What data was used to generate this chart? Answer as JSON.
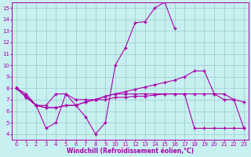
{
  "title": "",
  "xlabel": "Windchill (Refroidissement éolien,°C)",
  "ylabel": "",
  "background_color": "#c8f0f0",
  "grid_color": "#99cccc",
  "line_color": "#aa00aa",
  "x_values": [
    0,
    1,
    2,
    3,
    4,
    5,
    6,
    7,
    8,
    9,
    10,
    11,
    12,
    13,
    14,
    15,
    16,
    17,
    18,
    19,
    20,
    21,
    22,
    23
  ],
  "s1_x": [
    0,
    1,
    2,
    3,
    4,
    5,
    6,
    7,
    8,
    9,
    10,
    11,
    12,
    13,
    14,
    15,
    16
  ],
  "s1_y": [
    8.0,
    7.5,
    6.5,
    4.5,
    5.0,
    7.5,
    6.5,
    5.5,
    4.0,
    5.0,
    10.0,
    11.5,
    13.7,
    13.8,
    15.0,
    15.5,
    13.2
  ],
  "s2_x": [
    0,
    1,
    2,
    3,
    4,
    5,
    6,
    7,
    8,
    9,
    10,
    11,
    12,
    13,
    14,
    15,
    16,
    17,
    18,
    19,
    20,
    21,
    22,
    23
  ],
  "s2_y": [
    8.0,
    7.3,
    6.5,
    6.5,
    7.5,
    7.5,
    7.0,
    7.0,
    7.0,
    7.0,
    7.2,
    7.2,
    7.3,
    7.3,
    7.4,
    7.5,
    7.5,
    7.5,
    7.5,
    7.5,
    7.5,
    7.0,
    7.0,
    6.8
  ],
  "s3_x": [
    0,
    1,
    2,
    3,
    4,
    5,
    6,
    7,
    8,
    9,
    10,
    11,
    12,
    13,
    14,
    15,
    16,
    17,
    18,
    19,
    20,
    21,
    22,
    23
  ],
  "s3_y": [
    8.0,
    7.2,
    6.5,
    6.3,
    6.3,
    6.5,
    6.5,
    6.8,
    7.0,
    7.3,
    7.5,
    7.7,
    7.9,
    8.1,
    8.3,
    8.5,
    8.7,
    9.0,
    9.5,
    9.5,
    7.5,
    7.5,
    7.0,
    4.5
  ],
  "s4_x": [
    0,
    1,
    2,
    3,
    4,
    5,
    6,
    7,
    8,
    9,
    10,
    11,
    12,
    13,
    14,
    15,
    16,
    17,
    18,
    19,
    20,
    21,
    22,
    23
  ],
  "s4_y": [
    8.0,
    7.2,
    6.5,
    6.3,
    6.3,
    6.5,
    6.5,
    6.8,
    7.0,
    7.3,
    7.5,
    7.5,
    7.5,
    7.5,
    7.5,
    7.5,
    7.5,
    7.5,
    4.5,
    4.5,
    4.5,
    4.5,
    4.5,
    4.5
  ],
  "ylim": [
    3.5,
    15.5
  ],
  "xlim": [
    -0.5,
    23.5
  ],
  "yticks": [
    4,
    5,
    6,
    7,
    8,
    9,
    10,
    11,
    12,
    13,
    14,
    15
  ],
  "xticks": [
    0,
    1,
    2,
    3,
    4,
    5,
    6,
    7,
    8,
    9,
    10,
    11,
    12,
    13,
    14,
    15,
    16,
    17,
    18,
    19,
    20,
    21,
    22,
    23
  ],
  "markersize": 2.0,
  "linewidth": 0.8,
  "tick_fontsize": 5.0,
  "xlabel_fontsize": 5.5
}
